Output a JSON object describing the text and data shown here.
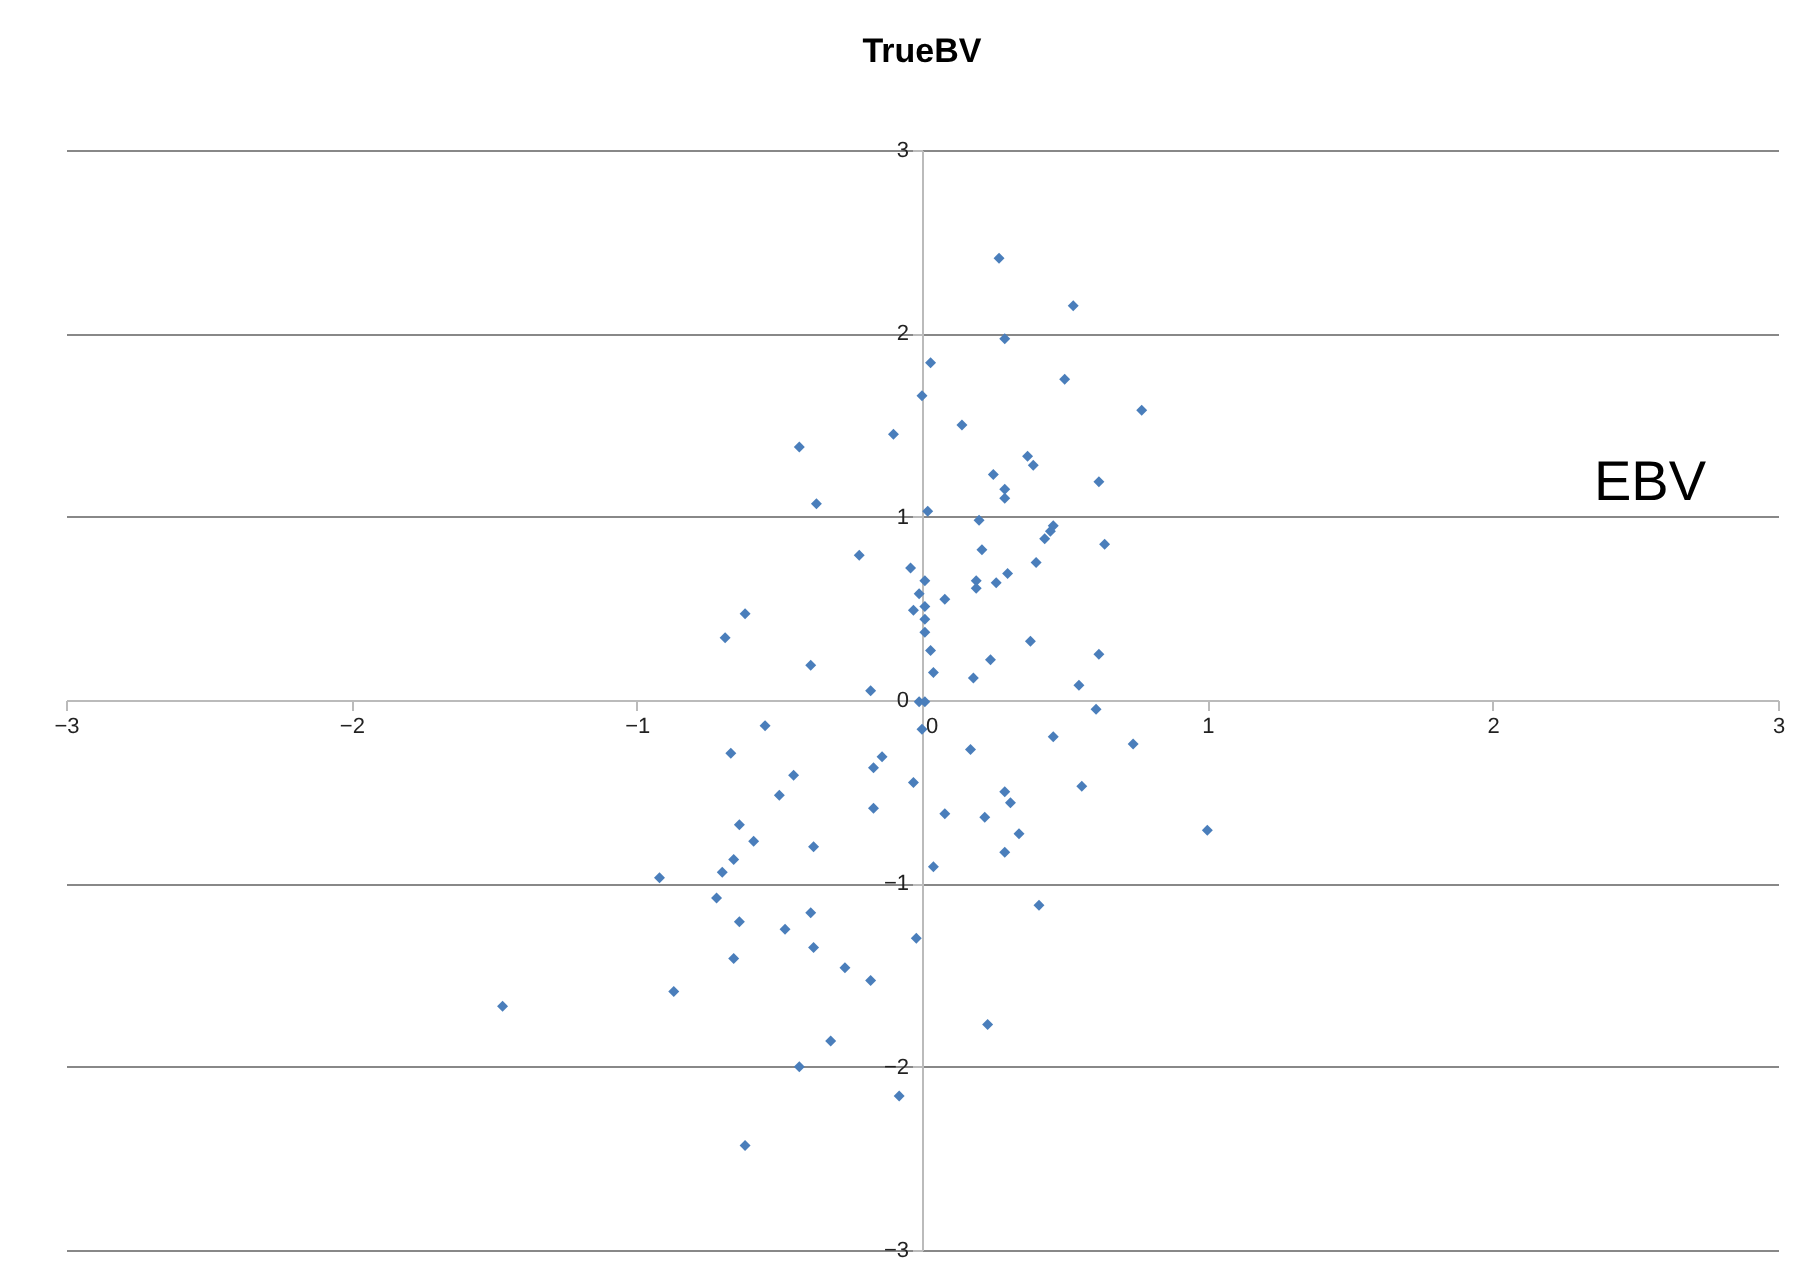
{
  "chart_data": {
    "type": "scatter",
    "title": "TrueBV",
    "annotations": [
      "EBV"
    ],
    "x": [
      0.27,
      0.53,
      0.29,
      0.03,
      0.5,
      0.0,
      0.77,
      0.14,
      -0.1,
      -0.43,
      0.37,
      0.39,
      0.25,
      0.29,
      0.29,
      0.62,
      -0.37,
      0.02,
      0.2,
      0.46,
      0.45,
      0.43,
      0.64,
      0.21,
      -0.22,
      0.4,
      -0.04,
      0.3,
      0.19,
      0.26,
      0.19,
      0.01,
      0.08,
      -0.01,
      -0.03,
      0.01,
      0.01,
      0.01,
      -0.62,
      -0.69,
      0.03,
      0.38,
      0.24,
      0.62,
      -0.39,
      0.04,
      0.18,
      0.55,
      -0.01,
      0.01,
      -0.18,
      0.0,
      -0.55,
      0.61,
      0.74,
      0.17,
      -0.67,
      -0.14,
      -0.17,
      -0.45,
      -0.03,
      0.46,
      0.29,
      0.31,
      0.56,
      -0.17,
      -0.5,
      0.08,
      0.22,
      -0.64,
      0.34,
      -0.59,
      -0.38,
      0.29,
      1.0,
      -0.66,
      0.04,
      -0.92,
      -0.7,
      -0.72,
      -0.39,
      0.41,
      -0.64,
      -0.48,
      -0.02,
      -0.38,
      -0.66,
      -0.27,
      -0.18,
      -1.47,
      -0.87,
      0.23,
      -0.32,
      -0.43,
      -0.08,
      -0.62
    ],
    "values": [
      2.41,
      2.15,
      1.97,
      1.84,
      1.75,
      1.66,
      1.58,
      1.5,
      1.45,
      1.38,
      1.33,
      1.28,
      1.23,
      1.15,
      1.1,
      1.19,
      1.07,
      1.03,
      0.98,
      0.95,
      0.92,
      0.88,
      0.85,
      0.82,
      0.79,
      0.75,
      0.72,
      0.69,
      0.65,
      0.64,
      0.61,
      0.65,
      0.55,
      0.58,
      0.49,
      0.51,
      0.44,
      0.37,
      0.47,
      0.34,
      0.27,
      0.32,
      0.22,
      0.25,
      0.19,
      0.15,
      0.12,
      0.08,
      -0.01,
      -0.01,
      0.05,
      -0.16,
      -0.14,
      -0.05,
      -0.24,
      -0.27,
      -0.29,
      -0.31,
      -0.37,
      -0.41,
      -0.45,
      -0.2,
      -0.5,
      -0.56,
      -0.47,
      -0.59,
      -0.52,
      -0.62,
      -0.64,
      -0.68,
      -0.73,
      -0.77,
      -0.8,
      -0.83,
      -0.71,
      -0.87,
      -0.91,
      -0.97,
      -0.94,
      -1.08,
      -1.16,
      -1.12,
      -1.21,
      -1.25,
      -1.3,
      -1.35,
      -1.41,
      -1.46,
      -1.53,
      -1.67,
      -1.59,
      -1.77,
      -1.86,
      -2.0,
      -2.16,
      -2.43
    ],
    "color": "#4a7ebb",
    "marker": "diamond",
    "xlim": [
      -3,
      3
    ],
    "ylim": [
      -3,
      3
    ],
    "xticks": [
      -3,
      -2,
      -1,
      0,
      1,
      2,
      3
    ],
    "yticks": [
      -3,
      -2,
      -1,
      0,
      1,
      2,
      3
    ],
    "grid": "y"
  }
}
